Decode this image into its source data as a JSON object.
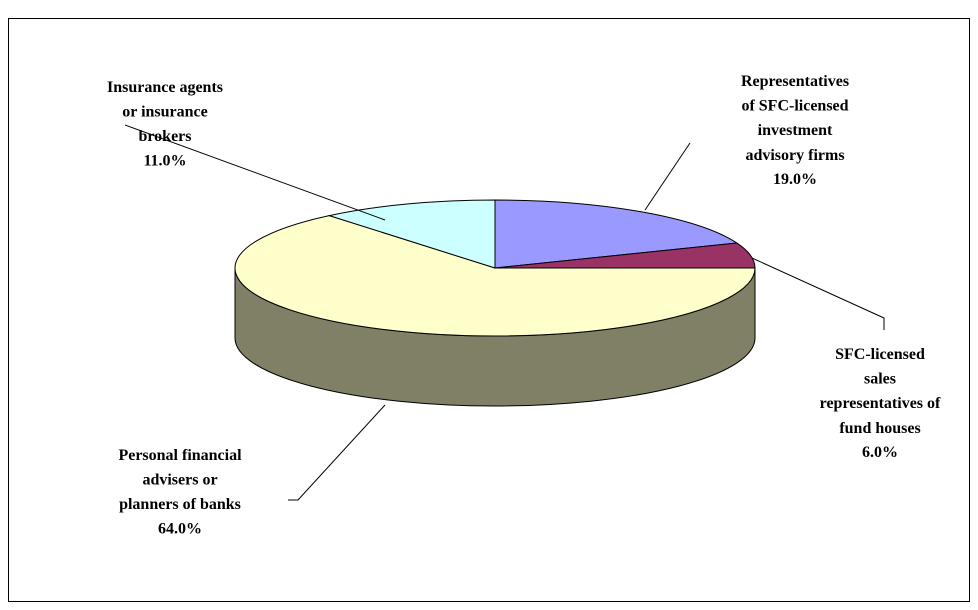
{
  "chart_data": {
    "type": "pie3d",
    "categories": [
      "Representatives\nof SFC-licensed\ninvestment\nadvisory firms",
      "SFC-licensed\nsales\nrepresentatives of\nfund houses",
      "Personal financial\nadvisers or\nplanners of banks",
      "Insurance agents\nor insurance\nbrokers"
    ],
    "values": [
      19,
      6,
      64,
      11
    ],
    "value_labels": [
      "19.0%",
      "6.0%",
      "64.0%",
      "11.0%"
    ],
    "colors": [
      "#9999ff",
      "#993366",
      "#ffffcc",
      "#ccffff"
    ]
  }
}
